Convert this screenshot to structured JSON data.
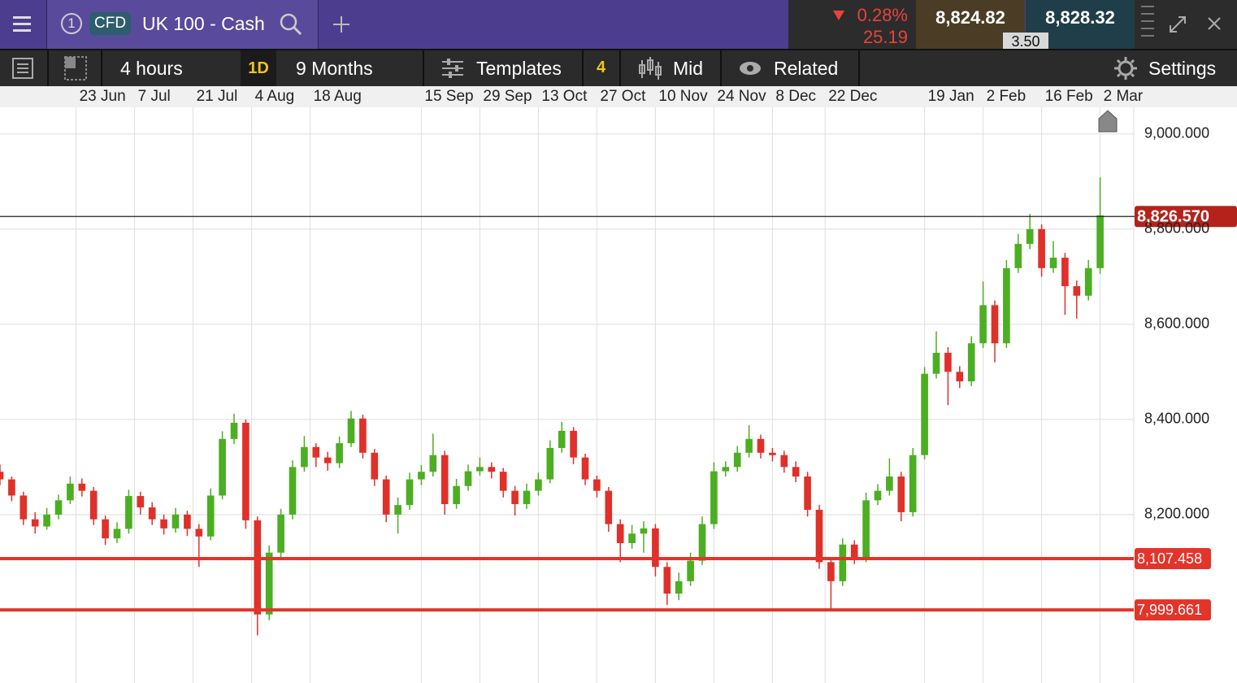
{
  "header": {
    "tab_number": "1",
    "badge": "CFD",
    "instrument": "UK 100 - Cash",
    "change_percent": "0.28%",
    "change_points": "25.19",
    "sell": "8,824.82",
    "buy": "8,828.32",
    "spread": "3.50"
  },
  "toolbar": {
    "interval": "4 hours",
    "period_shortcut": "1D",
    "period": "9 Months",
    "templates": "Templates",
    "templates_count": "4",
    "price_type": "Mid",
    "related": "Related",
    "settings": "Settings"
  },
  "chart_data": {
    "type": "candlestick",
    "up_color": "#4cae22",
    "down_color": "#e0302a",
    "grid": true,
    "xlim": [
      0,
      193.75
    ],
    "xticks": [
      {
        "value": 13,
        "label": "23 Jun"
      },
      {
        "value": 23,
        "label": "7 Jul"
      },
      {
        "value": 33,
        "label": "21 Jul"
      },
      {
        "value": 43,
        "label": "4 Aug"
      },
      {
        "value": 53,
        "label": "18 Aug"
      },
      {
        "value": 72,
        "label": "15 Sep"
      },
      {
        "value": 82,
        "label": "29 Sep"
      },
      {
        "value": 92,
        "label": "13 Oct"
      },
      {
        "value": 102,
        "label": "27 Oct"
      },
      {
        "value": 112,
        "label": "10 Nov"
      },
      {
        "value": 122,
        "label": "24 Nov"
      },
      {
        "value": 132,
        "label": "8 Dec"
      },
      {
        "value": 141,
        "label": "22 Dec"
      },
      {
        "value": 158,
        "label": "19 Jan"
      },
      {
        "value": 168,
        "label": "2 Feb"
      },
      {
        "value": 178,
        "label": "16 Feb"
      },
      {
        "value": 188,
        "label": "2 Mar"
      }
    ],
    "ylim": [
      7846,
      9056
    ],
    "yticks": [
      {
        "value": 8200,
        "label": "8,200.000"
      },
      {
        "value": 8400,
        "label": "8,400.000"
      },
      {
        "value": 8600,
        "label": "8,600.000"
      },
      {
        "value": 8800,
        "label": "8,800.000"
      },
      {
        "value": 9000,
        "label": "9,000.000"
      }
    ],
    "levels": [
      {
        "value": 8826.57,
        "label": "8,826.570",
        "color": "#b3231c",
        "line_color": "#222222"
      },
      {
        "value": 8107.458,
        "label": "8,107.458",
        "color": "#e3342a",
        "line_color": "#e3342a"
      },
      {
        "value": 7999.661,
        "label": "7,999.661",
        "color": "#e3342a",
        "line_color": "#e3342a"
      }
    ],
    "x": [
      0,
      2,
      4,
      6,
      8,
      10,
      12,
      14,
      16,
      18,
      20,
      22,
      24,
      26,
      28,
      30,
      32,
      34,
      36,
      38,
      40,
      42,
      44,
      46,
      48,
      50,
      52,
      54,
      56,
      58,
      60,
      62,
      64,
      66,
      68,
      70,
      72,
      74,
      76,
      78,
      80,
      82,
      84,
      86,
      88,
      90,
      92,
      94,
      96,
      98,
      100,
      102,
      104,
      106,
      108,
      110,
      112,
      114,
      116,
      118,
      120,
      122,
      124,
      126,
      128,
      130,
      132,
      134,
      136,
      138,
      140,
      142,
      144,
      146,
      148,
      150,
      152,
      154,
      156,
      158,
      160,
      162,
      164,
      166,
      168,
      170,
      172,
      174,
      176,
      178,
      180,
      182,
      184,
      186,
      188
    ],
    "candles": [
      [
        8290,
        8305,
        8262,
        8274
      ],
      [
        8274,
        8280,
        8228,
        8240
      ],
      [
        8240,
        8248,
        8178,
        8190
      ],
      [
        8190,
        8205,
        8160,
        8175
      ],
      [
        8175,
        8214,
        8168,
        8200
      ],
      [
        8200,
        8242,
        8190,
        8230
      ],
      [
        8230,
        8280,
        8222,
        8265
      ],
      [
        8265,
        8276,
        8238,
        8250
      ],
      [
        8250,
        8258,
        8178,
        8190
      ],
      [
        8190,
        8198,
        8136,
        8150
      ],
      [
        8150,
        8184,
        8140,
        8170
      ],
      [
        8170,
        8252,
        8160,
        8239
      ],
      [
        8239,
        8248,
        8200,
        8215
      ],
      [
        8215,
        8226,
        8178,
        8190
      ],
      [
        8190,
        8200,
        8158,
        8171
      ],
      [
        8171,
        8214,
        8162,
        8200
      ],
      [
        8200,
        8208,
        8155,
        8170
      ],
      [
        8170,
        8180,
        8090,
        8154
      ],
      [
        8154,
        8255,
        8146,
        8240
      ],
      [
        8240,
        8375,
        8232,
        8359
      ],
      [
        8359,
        8412,
        8348,
        8393
      ],
      [
        8393,
        8400,
        8170,
        8188
      ],
      [
        8188,
        8196,
        7946,
        7990
      ],
      [
        7990,
        8135,
        7978,
        8120
      ],
      [
        8120,
        8212,
        8108,
        8200
      ],
      [
        8200,
        8314,
        8190,
        8300
      ],
      [
        8300,
        8365,
        8290,
        8342
      ],
      [
        8342,
        8350,
        8300,
        8320
      ],
      [
        8320,
        8332,
        8292,
        8308
      ],
      [
        8308,
        8364,
        8298,
        8350
      ],
      [
        8350,
        8418,
        8342,
        8402
      ],
      [
        8402,
        8410,
        8318,
        8330
      ],
      [
        8330,
        8338,
        8260,
        8274
      ],
      [
        8274,
        8282,
        8184,
        8200
      ],
      [
        8200,
        8236,
        8160,
        8220
      ],
      [
        8220,
        8288,
        8210,
        8274
      ],
      [
        8274,
        8304,
        8262,
        8290
      ],
      [
        8290,
        8370,
        8280,
        8325
      ],
      [
        8325,
        8334,
        8200,
        8222
      ],
      [
        8222,
        8275,
        8212,
        8260
      ],
      [
        8260,
        8305,
        8250,
        8291
      ],
      [
        8291,
        8320,
        8282,
        8300
      ],
      [
        8300,
        8310,
        8276,
        8290
      ],
      [
        8290,
        8298,
        8236,
        8250
      ],
      [
        8250,
        8260,
        8198,
        8222
      ],
      [
        8222,
        8265,
        8212,
        8250
      ],
      [
        8250,
        8288,
        8240,
        8274
      ],
      [
        8274,
        8356,
        8266,
        8340
      ],
      [
        8340,
        8395,
        8330,
        8376
      ],
      [
        8376,
        8384,
        8306,
        8320
      ],
      [
        8320,
        8328,
        8262,
        8274
      ],
      [
        8274,
        8282,
        8236,
        8250
      ],
      [
        8250,
        8258,
        8164,
        8180
      ],
      [
        8180,
        8190,
        8100,
        8140
      ],
      [
        8140,
        8178,
        8128,
        8160
      ],
      [
        8160,
        8186,
        8120,
        8171
      ],
      [
        8171,
        8180,
        8070,
        8090
      ],
      [
        8090,
        8100,
        8010,
        8034
      ],
      [
        8034,
        8078,
        8020,
        8060
      ],
      [
        8060,
        8120,
        8050,
        8103
      ],
      [
        8103,
        8196,
        8094,
        8180
      ],
      [
        8180,
        8310,
        8170,
        8291
      ],
      [
        8291,
        8312,
        8280,
        8300
      ],
      [
        8300,
        8344,
        8290,
        8330
      ],
      [
        8330,
        8388,
        8320,
        8359
      ],
      [
        8359,
        8368,
        8318,
        8330
      ],
      [
        8330,
        8340,
        8312,
        8325
      ],
      [
        8325,
        8334,
        8288,
        8300
      ],
      [
        8300,
        8312,
        8268,
        8280
      ],
      [
        8280,
        8290,
        8196,
        8210
      ],
      [
        8210,
        8220,
        8086,
        8100
      ],
      [
        8100,
        8110,
        8000,
        8060
      ],
      [
        8060,
        8150,
        8050,
        8137
      ],
      [
        8137,
        8146,
        8096,
        8110
      ],
      [
        8110,
        8246,
        8100,
        8230
      ],
      [
        8230,
        8264,
        8220,
        8250
      ],
      [
        8250,
        8318,
        8240,
        8280
      ],
      [
        8280,
        8290,
        8186,
        8205
      ],
      [
        8205,
        8340,
        8196,
        8325
      ],
      [
        8325,
        8510,
        8316,
        8496
      ],
      [
        8496,
        8585,
        8486,
        8540
      ],
      [
        8540,
        8552,
        8430,
        8500
      ],
      [
        8500,
        8512,
        8466,
        8480
      ],
      [
        8480,
        8575,
        8470,
        8560
      ],
      [
        8560,
        8690,
        8550,
        8640
      ],
      [
        8640,
        8650,
        8520,
        8560
      ],
      [
        8560,
        8735,
        8550,
        8718
      ],
      [
        8718,
        8790,
        8708,
        8769
      ],
      [
        8769,
        8832,
        8758,
        8800
      ],
      [
        8800,
        8810,
        8700,
        8718
      ],
      [
        8718,
        8775,
        8708,
        8740
      ],
      [
        8740,
        8750,
        8620,
        8680
      ],
      [
        8680,
        8692,
        8612,
        8660
      ],
      [
        8660,
        8735,
        8650,
        8718
      ],
      [
        8718,
        8909,
        8706,
        8829
      ]
    ]
  }
}
